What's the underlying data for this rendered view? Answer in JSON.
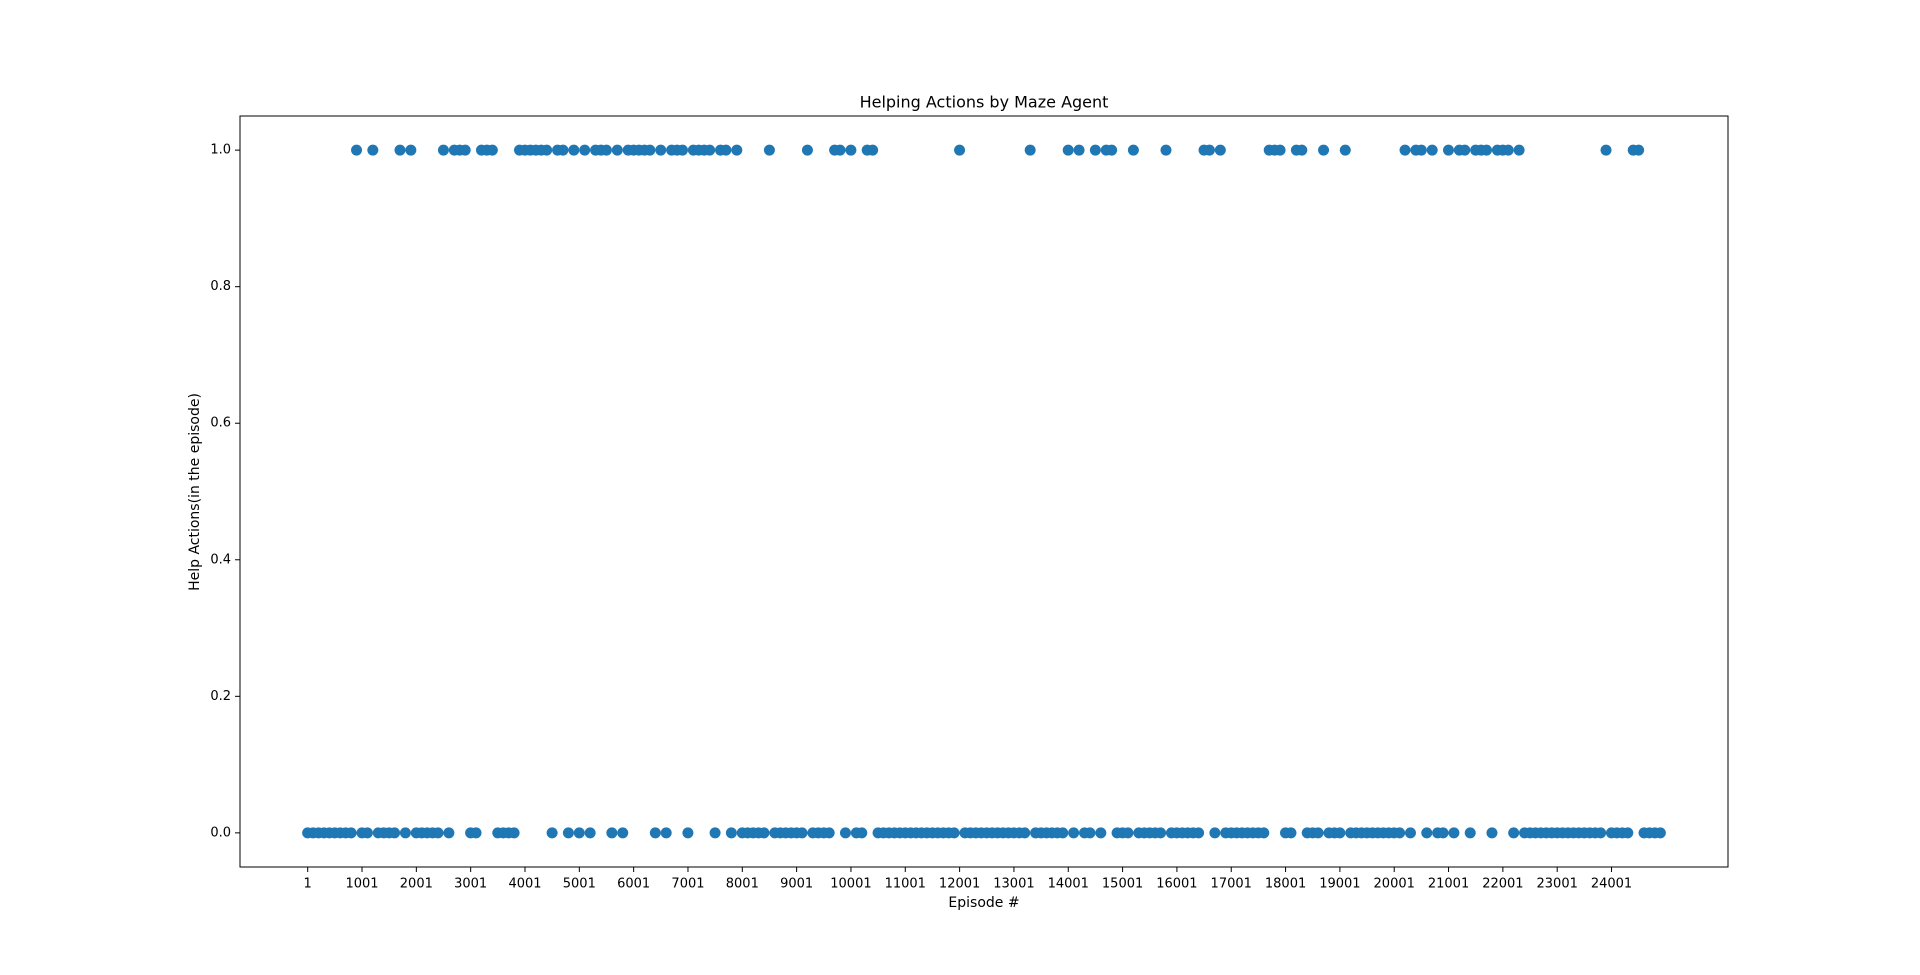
{
  "chart_data": {
    "type": "scatter",
    "title": "Helping Actions by Maze Agent",
    "x_label": "Episode #",
    "y_label": "Help Actions(in the episode)",
    "color": "#1f77b4",
    "x": [
      0,
      100,
      200,
      300,
      400,
      500,
      600,
      700,
      800,
      900,
      1000,
      1100,
      1200,
      1300,
      1400,
      1500,
      1600,
      1700,
      1800,
      1900,
      2000,
      2100,
      2200,
      2300,
      2400,
      2500,
      2600,
      2700,
      2800,
      2900,
      3000,
      3100,
      3200,
      3300,
      3400,
      3500,
      3600,
      3700,
      3800,
      3900,
      4000,
      4100,
      4200,
      4300,
      4400,
      4500,
      4600,
      4700,
      4800,
      4900,
      5000,
      5100,
      5200,
      5300,
      5400,
      5500,
      5600,
      5700,
      5800,
      5900,
      6000,
      6100,
      6200,
      6300,
      6400,
      6500,
      6600,
      6700,
      6800,
      6900,
      7000,
      7100,
      7200,
      7300,
      7400,
      7500,
      7600,
      7700,
      7800,
      7900,
      8000,
      8100,
      8200,
      8300,
      8400,
      8500,
      8600,
      8700,
      8800,
      8900,
      9000,
      9100,
      9200,
      9300,
      9400,
      9500,
      9600,
      9700,
      9800,
      9900,
      10000,
      10100,
      10200,
      10300,
      10400,
      10500,
      10600,
      10700,
      10800,
      10900,
      11000,
      11100,
      11200,
      11300,
      11400,
      11500,
      11600,
      11700,
      11800,
      11900,
      12000,
      12100,
      12200,
      12300,
      12400,
      12500,
      12600,
      12700,
      12800,
      12900,
      13000,
      13100,
      13200,
      13300,
      13400,
      13500,
      13600,
      13700,
      13800,
      13900,
      14000,
      14100,
      14200,
      14300,
      14400,
      14500,
      14600,
      14700,
      14800,
      14900,
      15000,
      15100,
      15200,
      15300,
      15400,
      15500,
      15600,
      15700,
      15800,
      15900,
      16000,
      16100,
      16200,
      16300,
      16400,
      16500,
      16600,
      16700,
      16800,
      16900,
      17000,
      17100,
      17200,
      17300,
      17400,
      17500,
      17600,
      17700,
      17800,
      17900,
      18000,
      18100,
      18200,
      18300,
      18400,
      18500,
      18600,
      18700,
      18800,
      18900,
      19000,
      19100,
      19200,
      19300,
      19400,
      19500,
      19600,
      19700,
      19800,
      19900,
      20000,
      20100,
      20200,
      20300,
      20400,
      20500,
      20600,
      20700,
      20800,
      20900,
      21000,
      21100,
      21200,
      21300,
      21400,
      21500,
      21600,
      21700,
      21800,
      21900,
      22000,
      22100,
      22200,
      22300,
      22400,
      22500,
      22600,
      22700,
      22800,
      22900,
      23000,
      23100,
      23200,
      23300,
      23400,
      23500,
      23600,
      23700,
      23800,
      23900,
      24000,
      24100,
      24200,
      24300,
      24400,
      24500,
      24600,
      24700,
      24800,
      24900
    ],
    "values": [
      0,
      0,
      0,
      0,
      0,
      0,
      0,
      0,
      0,
      1,
      0,
      0,
      1,
      0,
      0,
      0,
      0,
      1,
      0,
      1,
      0,
      0,
      0,
      0,
      0,
      1,
      0,
      1,
      1,
      1,
      0,
      0,
      1,
      1,
      1,
      0,
      0,
      0,
      0,
      1,
      1,
      1,
      1,
      1,
      1,
      0,
      1,
      1,
      0,
      1,
      0,
      1,
      0,
      1,
      1,
      1,
      0,
      1,
      0,
      1,
      1,
      1,
      1,
      1,
      0,
      1,
      0,
      1,
      1,
      1,
      0,
      1,
      1,
      1,
      1,
      0,
      1,
      1,
      0,
      1,
      0,
      0,
      0,
      0,
      0,
      1,
      0,
      0,
      0,
      0,
      0,
      0,
      1,
      0,
      0,
      0,
      0,
      1,
      1,
      0,
      1,
      0,
      0,
      1,
      1,
      0,
      0,
      0,
      0,
      0,
      0,
      0,
      0,
      0,
      0,
      0,
      0,
      0,
      0,
      0,
      1,
      0,
      0,
      0,
      0,
      0,
      0,
      0,
      0,
      0,
      0,
      0,
      0,
      1,
      0,
      0,
      0,
      0,
      0,
      0,
      1,
      0,
      1,
      0,
      0,
      1,
      0,
      1,
      1,
      0,
      0,
      0,
      1,
      0,
      0,
      0,
      0,
      0,
      1,
      0,
      0,
      0,
      0,
      0,
      0,
      1,
      1,
      0,
      1,
      0,
      0,
      0,
      0,
      0,
      0,
      0,
      0,
      1,
      1,
      1,
      0,
      0,
      1,
      1,
      0,
      0,
      0,
      1,
      0,
      0,
      0,
      1,
      0,
      0,
      0,
      0,
      0,
      0,
      0,
      0,
      0,
      0,
      1,
      0,
      1,
      1,
      0,
      1,
      0,
      0,
      1,
      0,
      1,
      1,
      0,
      1,
      1,
      1,
      0,
      1,
      1,
      1,
      0,
      1,
      0,
      0,
      0,
      0,
      0,
      0,
      0,
      0,
      0,
      0,
      0,
      0,
      0,
      0,
      0,
      1,
      0,
      0,
      0,
      0,
      1,
      1,
      0,
      0,
      0,
      0
    ],
    "xlim": [
      -1245,
      26145
    ],
    "ylim": [
      -0.05,
      1.05
    ],
    "xticks": [
      1,
      1001,
      2001,
      3001,
      4001,
      5001,
      6001,
      7001,
      8001,
      9001,
      10001,
      11001,
      12001,
      13001,
      14001,
      15001,
      16001,
      17001,
      18001,
      19001,
      20001,
      21001,
      22001,
      23001,
      24001
    ],
    "yticks": [
      {
        "value": 0,
        "label": "0.0"
      },
      0.2,
      0.4,
      0.6,
      0.8,
      {
        "value": 1,
        "label": "1.0"
      }
    ]
  }
}
